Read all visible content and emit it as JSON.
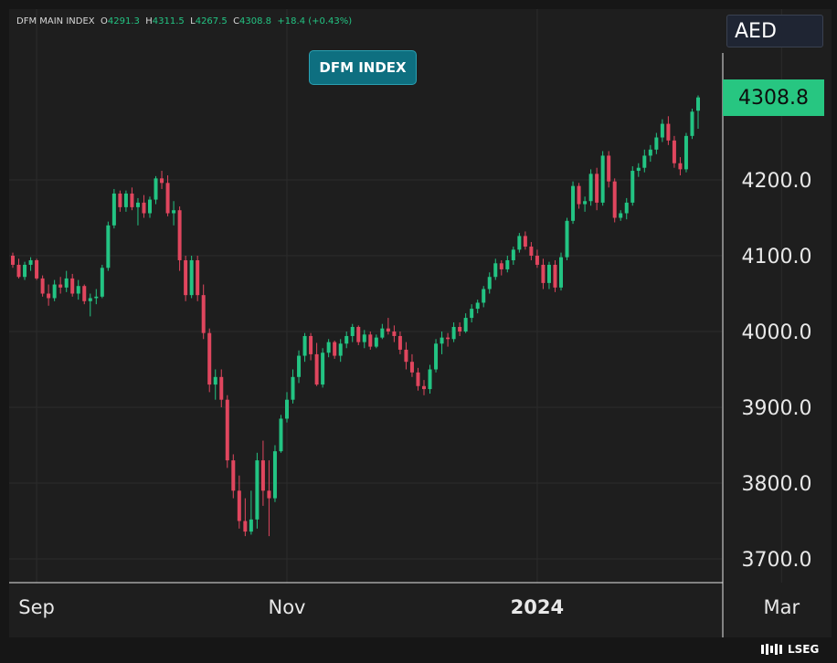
{
  "ohlc": {
    "name": "DFM MAIN INDEX",
    "open_label": "O",
    "open": "4291.3",
    "high_label": "H",
    "high": "4311.5",
    "low_label": "L",
    "low": "4267.5",
    "close_label": "C",
    "close": "4308.8",
    "change": "+18.4 (+0.43%)"
  },
  "badge_title": "DFM INDEX",
  "currency": "AED",
  "last_price": "4308.8",
  "brand": "LSEG",
  "colors": {
    "up": "#23c483",
    "down": "#e0465e",
    "badge": "#0e6f80",
    "price_badge": "#27c681"
  },
  "chart_data": {
    "type": "candlestick",
    "title": "DFM INDEX",
    "y_ticks": [
      3700.0,
      3800.0,
      3900.0,
      4000.0,
      4100.0,
      4200.0
    ],
    "y_tick_labels": [
      "3700.0",
      "3800.0",
      "3900.0",
      "4000.0",
      "4100.0",
      "4200.0"
    ],
    "ylim": [
      3668,
      4368
    ],
    "x_ticks": [
      {
        "label": "Sep",
        "index": 4
      },
      {
        "label": "Nov",
        "index": 46
      },
      {
        "label": "2024",
        "index": 88
      },
      {
        "label": "Mar",
        "index": 129
      }
    ],
    "grid": true,
    "last_price": 4308.8,
    "candles": [
      [
        4100,
        4104,
        4084,
        4088
      ],
      [
        4088,
        4096,
        4070,
        4072
      ],
      [
        4072,
        4092,
        4068,
        4088
      ],
      [
        4088,
        4098,
        4080,
        4094
      ],
      [
        4094,
        4096,
        4068,
        4070
      ],
      [
        4070,
        4074,
        4046,
        4050
      ],
      [
        4050,
        4062,
        4034,
        4044
      ],
      [
        4044,
        4068,
        4040,
        4062
      ],
      [
        4062,
        4072,
        4050,
        4058
      ],
      [
        4058,
        4080,
        4052,
        4070
      ],
      [
        4070,
        4076,
        4046,
        4050
      ],
      [
        4050,
        4068,
        4042,
        4060
      ],
      [
        4060,
        4062,
        4036,
        4040
      ],
      [
        4040,
        4050,
        4020,
        4044
      ],
      [
        4044,
        4056,
        4036,
        4046
      ],
      [
        4046,
        4088,
        4044,
        4084
      ],
      [
        4084,
        4145,
        4080,
        4140
      ],
      [
        4140,
        4188,
        4136,
        4182
      ],
      [
        4182,
        4186,
        4158,
        4164
      ],
      [
        4164,
        4186,
        4158,
        4182
      ],
      [
        4182,
        4190,
        4160,
        4164
      ],
      [
        4164,
        4176,
        4140,
        4170
      ],
      [
        4170,
        4180,
        4150,
        4156
      ],
      [
        4156,
        4178,
        4150,
        4174
      ],
      [
        4174,
        4205,
        4168,
        4202
      ],
      [
        4202,
        4212,
        4188,
        4196
      ],
      [
        4196,
        4206,
        4152,
        4156
      ],
      [
        4156,
        4172,
        4140,
        4160
      ],
      [
        4160,
        4165,
        4080,
        4094
      ],
      [
        4094,
        4100,
        4040,
        4048
      ],
      [
        4048,
        4100,
        4044,
        4094
      ],
      [
        4094,
        4100,
        4040,
        4048
      ],
      [
        4048,
        4062,
        3990,
        3998
      ],
      [
        3998,
        4004,
        3920,
        3930
      ],
      [
        3930,
        3950,
        3910,
        3940
      ],
      [
        3940,
        3950,
        3900,
        3910
      ],
      [
        3910,
        3916,
        3820,
        3830
      ],
      [
        3830,
        3838,
        3780,
        3790
      ],
      [
        3790,
        3810,
        3740,
        3750
      ],
      [
        3750,
        3780,
        3730,
        3736
      ],
      [
        3736,
        3790,
        3732,
        3752
      ],
      [
        3752,
        3840,
        3740,
        3830
      ],
      [
        3830,
        3856,
        3770,
        3790
      ],
      [
        3790,
        3830,
        3730,
        3780
      ],
      [
        3780,
        3850,
        3775,
        3842
      ],
      [
        3842,
        3890,
        3840,
        3885
      ],
      [
        3885,
        3920,
        3880,
        3910
      ],
      [
        3910,
        3950,
        3905,
        3940
      ],
      [
        3940,
        3975,
        3932,
        3968
      ],
      [
        3968,
        3998,
        3960,
        3994
      ],
      [
        3994,
        3998,
        3962,
        3970
      ],
      [
        3970,
        3985,
        3928,
        3930
      ],
      [
        3930,
        3978,
        3926,
        3972
      ],
      [
        3972,
        3990,
        3966,
        3986
      ],
      [
        3986,
        3988,
        3964,
        3968
      ],
      [
        3968,
        3990,
        3960,
        3984
      ],
      [
        3984,
        4000,
        3978,
        3994
      ],
      [
        3994,
        4010,
        3986,
        4006
      ],
      [
        4006,
        4008,
        3982,
        3986
      ],
      [
        3986,
        4002,
        3978,
        3996
      ],
      [
        3996,
        4000,
        3976,
        3980
      ],
      [
        3980,
        3996,
        3978,
        3992
      ],
      [
        3992,
        4010,
        3990,
        4004
      ],
      [
        4004,
        4018,
        3996,
        4000
      ],
      [
        4000,
        4008,
        3986,
        3994
      ],
      [
        3994,
        4000,
        3970,
        3976
      ],
      [
        3976,
        3986,
        3950,
        3960
      ],
      [
        3960,
        3970,
        3940,
        3946
      ],
      [
        3946,
        3952,
        3922,
        3928
      ],
      [
        3928,
        3936,
        3916,
        3924
      ],
      [
        3924,
        3956,
        3918,
        3950
      ],
      [
        3950,
        3990,
        3946,
        3984
      ],
      [
        3984,
        4000,
        3970,
        3992
      ],
      [
        3992,
        3998,
        3980,
        3990
      ],
      [
        3990,
        4012,
        3986,
        4006
      ],
      [
        4006,
        4012,
        3994,
        4000
      ],
      [
        4000,
        4024,
        3998,
        4018
      ],
      [
        4018,
        4036,
        4012,
        4030
      ],
      [
        4030,
        4042,
        4024,
        4038
      ],
      [
        4038,
        4060,
        4032,
        4056
      ],
      [
        4056,
        4078,
        4050,
        4072
      ],
      [
        4072,
        4096,
        4068,
        4090
      ],
      [
        4090,
        4094,
        4074,
        4082
      ],
      [
        4082,
        4100,
        4078,
        4094
      ],
      [
        4094,
        4112,
        4088,
        4108
      ],
      [
        4108,
        4130,
        4104,
        4126
      ],
      [
        4126,
        4132,
        4108,
        4112
      ],
      [
        4112,
        4118,
        4094,
        4100
      ],
      [
        4100,
        4108,
        4084,
        4088
      ],
      [
        4088,
        4096,
        4056,
        4064
      ],
      [
        4064,
        4092,
        4056,
        4088
      ],
      [
        4088,
        4094,
        4052,
        4058
      ],
      [
        4058,
        4104,
        4054,
        4098
      ],
      [
        4098,
        4150,
        4094,
        4146
      ],
      [
        4146,
        4198,
        4142,
        4192
      ],
      [
        4192,
        4196,
        4162,
        4168
      ],
      [
        4168,
        4178,
        4158,
        4172
      ],
      [
        4172,
        4214,
        4166,
        4208
      ],
      [
        4208,
        4216,
        4160,
        4170
      ],
      [
        4170,
        4238,
        4166,
        4232
      ],
      [
        4232,
        4238,
        4190,
        4198
      ],
      [
        4198,
        4202,
        4144,
        4150
      ],
      [
        4150,
        4160,
        4146,
        4156
      ],
      [
        4156,
        4176,
        4148,
        4170
      ],
      [
        4170,
        4218,
        4166,
        4212
      ],
      [
        4212,
        4222,
        4204,
        4216
      ],
      [
        4216,
        4240,
        4210,
        4232
      ],
      [
        4232,
        4246,
        4224,
        4240
      ],
      [
        4240,
        4262,
        4234,
        4256
      ],
      [
        4256,
        4280,
        4250,
        4274
      ],
      [
        4274,
        4284,
        4246,
        4252
      ],
      [
        4252,
        4258,
        4216,
        4222
      ],
      [
        4222,
        4230,
        4206,
        4214
      ],
      [
        4214,
        4262,
        4210,
        4258
      ],
      [
        4258,
        4294,
        4254,
        4290
      ],
      [
        4291.3,
        4311.5,
        4267.5,
        4308.8
      ]
    ]
  }
}
